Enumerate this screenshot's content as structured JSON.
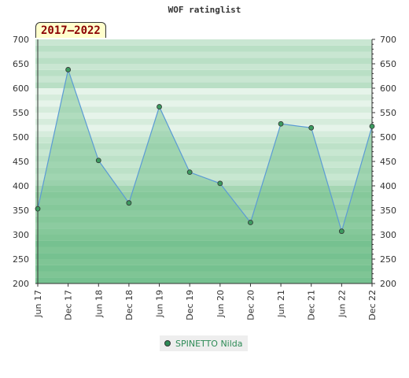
{
  "title": "WOF ratinglist",
  "range_label": "2017–2022",
  "chart_data": {
    "type": "area",
    "title": "WOF ratinglist",
    "categories": [
      "Jun 17",
      "Dec 17",
      "Jun 18",
      "Dec 18",
      "Jun 19",
      "Dec 19",
      "Jun 20",
      "Dec 20",
      "Jun 21",
      "Dec 21",
      "Jun 22",
      "Dec 22"
    ],
    "series": [
      {
        "name": "SPINETTO Nilda",
        "values": [
          353,
          638,
          452,
          365,
          562,
          428,
          405,
          325,
          527,
          519,
          307,
          522
        ]
      }
    ],
    "ylim": [
      200,
      700
    ],
    "yticks": [
      200,
      250,
      300,
      350,
      400,
      450,
      500,
      550,
      600,
      650,
      700
    ],
    "grid": true,
    "legend_position": "bottom",
    "colors": {
      "line": "#5b9bd5",
      "fill": "#6fbf8a",
      "marker": "#3c9a5f"
    }
  },
  "legend": {
    "label": "SPINETTO Nilda"
  }
}
